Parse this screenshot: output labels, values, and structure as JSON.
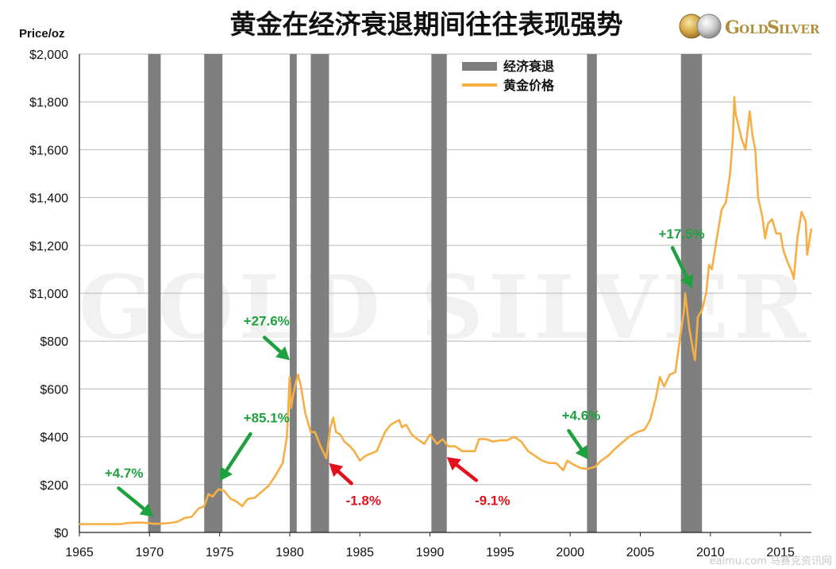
{
  "title": "黄金在经济衰退期间往往表现强势",
  "logo": {
    "text_big_g": "G",
    "text_old": "OLD",
    "text_big_s": "S",
    "text_ilver": "ILVER"
  },
  "watermark": "GOLD SILVER",
  "corner_mark": "ealmu.com  马赛克资讯网",
  "colors": {
    "recession": "#7f7f7f",
    "gold": "#f6ae45",
    "green": "#1fa140",
    "red": "#e3111d",
    "grid": "#b7b7b7"
  },
  "chart_data": {
    "type": "line",
    "title": "黄金在经济衰退期间往往表现强势",
    "ylabel": "Price/oz",
    "xlabel": "",
    "xlim": [
      1965,
      2017.2
    ],
    "ylim": [
      0,
      2000
    ],
    "grid": true,
    "legend_position": "top-center",
    "x_ticks": [
      1965,
      1970,
      1975,
      1980,
      1985,
      1990,
      1995,
      2000,
      2005,
      2010,
      2015
    ],
    "y_ticks": [
      {
        "value": 0,
        "label": "$0"
      },
      {
        "value": 200,
        "label": "$200"
      },
      {
        "value": 400,
        "label": "$400"
      },
      {
        "value": 600,
        "label": "$600"
      },
      {
        "value": 800,
        "label": "$800"
      },
      {
        "value": 1000,
        "label": "$1,000"
      },
      {
        "value": 1200,
        "label": "$1,200"
      },
      {
        "value": 1400,
        "label": "$1,400"
      },
      {
        "value": 1600,
        "label": "$1,600"
      },
      {
        "value": 1800,
        "label": "$1,800"
      },
      {
        "value": 2000,
        "label": "$2,000"
      }
    ],
    "legend": [
      {
        "name": "经济衰退",
        "kind": "bar"
      },
      {
        "name": "黄金价格",
        "kind": "line"
      }
    ],
    "recessions": [
      [
        1969.9,
        1970.8
      ],
      [
        1973.9,
        1975.2
      ],
      [
        1980.0,
        1980.5
      ],
      [
        1981.5,
        1982.8
      ],
      [
        1990.1,
        1991.2
      ],
      [
        2001.2,
        2001.9
      ],
      [
        2007.9,
        2009.4
      ]
    ],
    "series": [
      {
        "name": "黄金价格",
        "points": [
          [
            1965,
            35
          ],
          [
            1967,
            35
          ],
          [
            1968,
            35
          ],
          [
            1968.3,
            39
          ],
          [
            1969.2,
            42
          ],
          [
            1969.8,
            40
          ],
          [
            1970.3,
            36
          ],
          [
            1970.8,
            37
          ],
          [
            1971.5,
            40
          ],
          [
            1972,
            45
          ],
          [
            1972.5,
            60
          ],
          [
            1973,
            65
          ],
          [
            1973.5,
            100
          ],
          [
            1973.9,
            110
          ],
          [
            1974.2,
            160
          ],
          [
            1974.5,
            150
          ],
          [
            1974.9,
            180
          ],
          [
            1975.3,
            175
          ],
          [
            1975.8,
            140
          ],
          [
            1976.2,
            130
          ],
          [
            1976.6,
            110
          ],
          [
            1977,
            140
          ],
          [
            1977.5,
            145
          ],
          [
            1978,
            170
          ],
          [
            1978.5,
            195
          ],
          [
            1979,
            240
          ],
          [
            1979.5,
            290
          ],
          [
            1979.8,
            400
          ],
          [
            1980.0,
            650
          ],
          [
            1980.1,
            520
          ],
          [
            1980.2,
            560
          ],
          [
            1980.4,
            620
          ],
          [
            1980.6,
            660
          ],
          [
            1980.8,
            610
          ],
          [
            1981.1,
            500
          ],
          [
            1981.5,
            420
          ],
          [
            1981.8,
            420
          ],
          [
            1982.2,
            360
          ],
          [
            1982.6,
            310
          ],
          [
            1982.9,
            440
          ],
          [
            1983.1,
            480
          ],
          [
            1983.3,
            420
          ],
          [
            1983.6,
            410
          ],
          [
            1983.9,
            380
          ],
          [
            1984.3,
            360
          ],
          [
            1984.6,
            340
          ],
          [
            1985,
            300
          ],
          [
            1985.4,
            320
          ],
          [
            1985.8,
            330
          ],
          [
            1986.2,
            340
          ],
          [
            1986.8,
            420
          ],
          [
            1987.2,
            450
          ],
          [
            1987.8,
            470
          ],
          [
            1988,
            440
          ],
          [
            1988.3,
            450
          ],
          [
            1988.7,
            410
          ],
          [
            1989.1,
            390
          ],
          [
            1989.6,
            370
          ],
          [
            1990,
            410
          ],
          [
            1990.5,
            370
          ],
          [
            1990.9,
            390
          ],
          [
            1991.3,
            360
          ],
          [
            1991.8,
            360
          ],
          [
            1992.3,
            340
          ],
          [
            1992.8,
            340
          ],
          [
            1993.2,
            340
          ],
          [
            1993.5,
            390
          ],
          [
            1994,
            390
          ],
          [
            1994.5,
            380
          ],
          [
            1995,
            385
          ],
          [
            1995.5,
            385
          ],
          [
            1996,
            400
          ],
          [
            1996.5,
            380
          ],
          [
            1997,
            340
          ],
          [
            1997.5,
            320
          ],
          [
            1998,
            300
          ],
          [
            1998.5,
            290
          ],
          [
            1999,
            290
          ],
          [
            1999.5,
            260
          ],
          [
            1999.8,
            300
          ],
          [
            2000.2,
            285
          ],
          [
            2000.7,
            270
          ],
          [
            2001.2,
            265
          ],
          [
            2001.8,
            275
          ],
          [
            2002.2,
            300
          ],
          [
            2002.7,
            320
          ],
          [
            2003.2,
            350
          ],
          [
            2003.8,
            380
          ],
          [
            2004.2,
            400
          ],
          [
            2004.8,
            420
          ],
          [
            2005.3,
            430
          ],
          [
            2005.7,
            470
          ],
          [
            2006.1,
            560
          ],
          [
            2006.4,
            650
          ],
          [
            2006.7,
            610
          ],
          [
            2007.1,
            660
          ],
          [
            2007.5,
            670
          ],
          [
            2007.8,
            800
          ],
          [
            2008.1,
            920
          ],
          [
            2008.2,
            1000
          ],
          [
            2008.5,
            850
          ],
          [
            2008.8,
            750
          ],
          [
            2008.9,
            720
          ],
          [
            2009.1,
            900
          ],
          [
            2009.4,
            930
          ],
          [
            2009.7,
            1000
          ],
          [
            2009.9,
            1120
          ],
          [
            2010.1,
            1100
          ],
          [
            2010.4,
            1210
          ],
          [
            2010.8,
            1350
          ],
          [
            2011.1,
            1380
          ],
          [
            2011.4,
            1500
          ],
          [
            2011.6,
            1650
          ],
          [
            2011.7,
            1820
          ],
          [
            2011.8,
            1750
          ],
          [
            2012,
            1700
          ],
          [
            2012.2,
            1650
          ],
          [
            2012.5,
            1600
          ],
          [
            2012.8,
            1760
          ],
          [
            2013,
            1660
          ],
          [
            2013.2,
            1600
          ],
          [
            2013.4,
            1400
          ],
          [
            2013.7,
            1320
          ],
          [
            2013.9,
            1230
          ],
          [
            2014.1,
            1290
          ],
          [
            2014.4,
            1310
          ],
          [
            2014.7,
            1250
          ],
          [
            2015,
            1250
          ],
          [
            2015.2,
            1180
          ],
          [
            2015.5,
            1130
          ],
          [
            2015.8,
            1090
          ],
          [
            2015.95,
            1060
          ],
          [
            2016.2,
            1230
          ],
          [
            2016.5,
            1340
          ],
          [
            2016.8,
            1300
          ],
          [
            2016.9,
            1160
          ],
          [
            2017,
            1200
          ],
          [
            2017.2,
            1270
          ]
        ]
      }
    ],
    "annotations": [
      {
        "text": "+4.7%",
        "color": "green",
        "text_at": [
          1966.8,
          230
        ],
        "arrow_from": [
          1967.8,
          185
        ],
        "arrow_to": [
          1970.3,
          65
        ]
      },
      {
        "text": "+85.1%",
        "color": "green",
        "text_at": [
          1976.7,
          460
        ],
        "arrow_from": [
          1977.2,
          412
        ],
        "arrow_to": [
          1975.0,
          215
        ]
      },
      {
        "text": "+27.6%",
        "color": "green",
        "text_at": [
          1976.7,
          865
        ],
        "arrow_from": [
          1978.2,
          815
        ],
        "arrow_to": [
          1980.0,
          720
        ]
      },
      {
        "text": "-1.8%",
        "color": "red",
        "text_at": [
          1984.0,
          115
        ],
        "arrow_from": [
          1984.4,
          205
        ],
        "arrow_to": [
          1982.8,
          290
        ]
      },
      {
        "text": "-9.1%",
        "color": "red",
        "text_at": [
          1993.2,
          115
        ],
        "arrow_from": [
          1993.3,
          218
        ],
        "arrow_to": [
          1991.2,
          315
        ]
      },
      {
        "text": "+4.6%",
        "color": "green",
        "text_at": [
          1999.4,
          470
        ],
        "arrow_from": [
          1999.9,
          425
        ],
        "arrow_to": [
          2001.3,
          305
        ]
      },
      {
        "text": "+17.5%",
        "color": "green",
        "text_at": [
          2006.3,
          1230
        ],
        "arrow_from": [
          2007.3,
          1190
        ],
        "arrow_to": [
          2008.7,
          1020
        ]
      }
    ]
  }
}
